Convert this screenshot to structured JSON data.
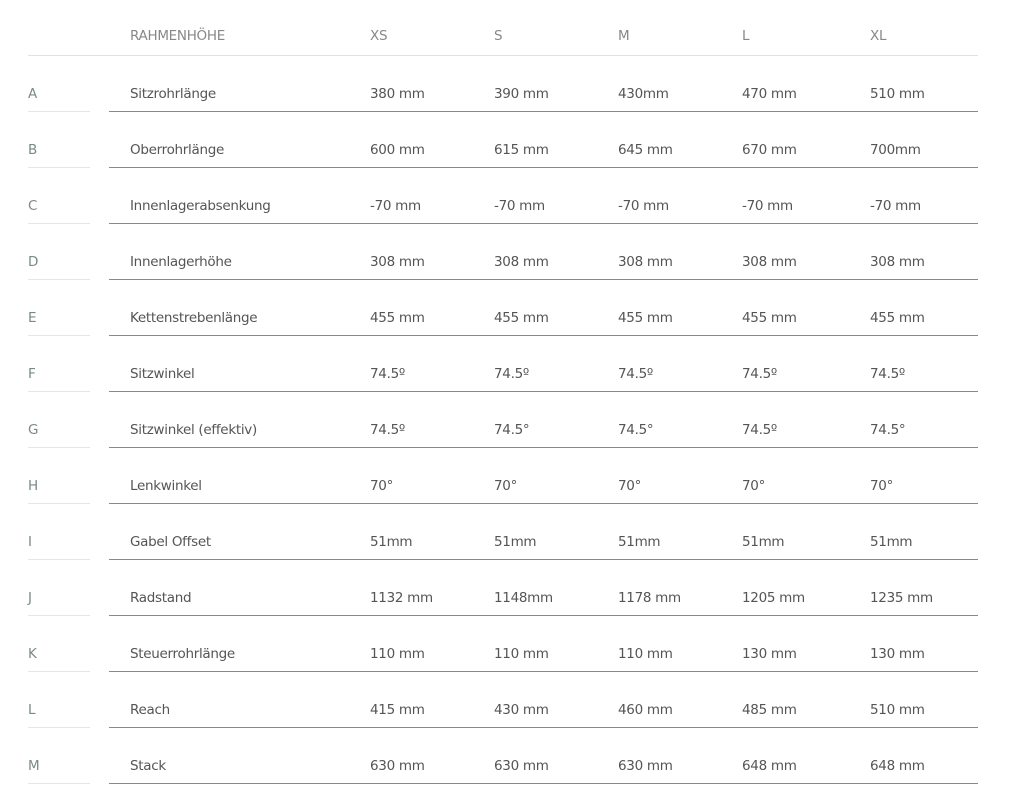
{
  "header": {
    "label": "RAHMENHÖHE",
    "sizes": [
      "XS",
      "S",
      "M",
      "L",
      "XL"
    ]
  },
  "rows": [
    {
      "letter": "A",
      "label": "Sitzrohrlänge",
      "values": [
        "380 mm",
        "390 mm",
        "430mm",
        "470 mm",
        "510 mm"
      ]
    },
    {
      "letter": "B",
      "label": "Oberrohrlänge",
      "values": [
        "600 mm",
        "615 mm",
        "645 mm",
        "670 mm",
        "700mm"
      ]
    },
    {
      "letter": "C",
      "label": "Innenlagerabsenkung",
      "values": [
        "-70 mm",
        "-70 mm",
        "-70 mm",
        "-70 mm",
        "-70 mm"
      ]
    },
    {
      "letter": "D",
      "label": "Innenlagerhöhe",
      "values": [
        "308 mm",
        "308 mm",
        "308 mm",
        "308 mm",
        "308 mm"
      ]
    },
    {
      "letter": "E",
      "label": "Kettenstrebenlänge",
      "values": [
        "455 mm",
        "455 mm",
        "455 mm",
        "455 mm",
        "455 mm"
      ]
    },
    {
      "letter": "F",
      "label": "Sitzwinkel",
      "values": [
        "74.5º",
        "74.5º",
        "74.5º",
        "74.5º",
        "74.5º"
      ]
    },
    {
      "letter": "G",
      "label": "Sitzwinkel (effektiv)",
      "values": [
        "74.5º",
        "74.5°",
        "74.5°",
        "74.5º",
        "74.5°"
      ]
    },
    {
      "letter": "H",
      "label": "Lenkwinkel",
      "values": [
        "70°",
        "70°",
        "70°",
        "70°",
        "70°"
      ]
    },
    {
      "letter": "I",
      "label": "Gabel Offset",
      "values": [
        "51mm",
        "51mm",
        "51mm",
        "51mm",
        "51mm"
      ]
    },
    {
      "letter": "J",
      "label": "Radstand",
      "values": [
        "1132 mm",
        "1148mm",
        "1178 mm",
        "1205 mm",
        "1235 mm"
      ]
    },
    {
      "letter": "K",
      "label": "Steuerrohrlänge",
      "values": [
        "110 mm",
        "110 mm",
        "110 mm",
        "130 mm",
        "130 mm"
      ]
    },
    {
      "letter": "L",
      "label": "Reach",
      "values": [
        "415 mm",
        "430 mm",
        "460 mm",
        "485 mm",
        "510 mm"
      ]
    },
    {
      "letter": "M",
      "label": "Stack",
      "values": [
        "630 mm",
        "630 mm",
        "630 mm",
        "648 mm",
        "648 mm"
      ]
    }
  ]
}
